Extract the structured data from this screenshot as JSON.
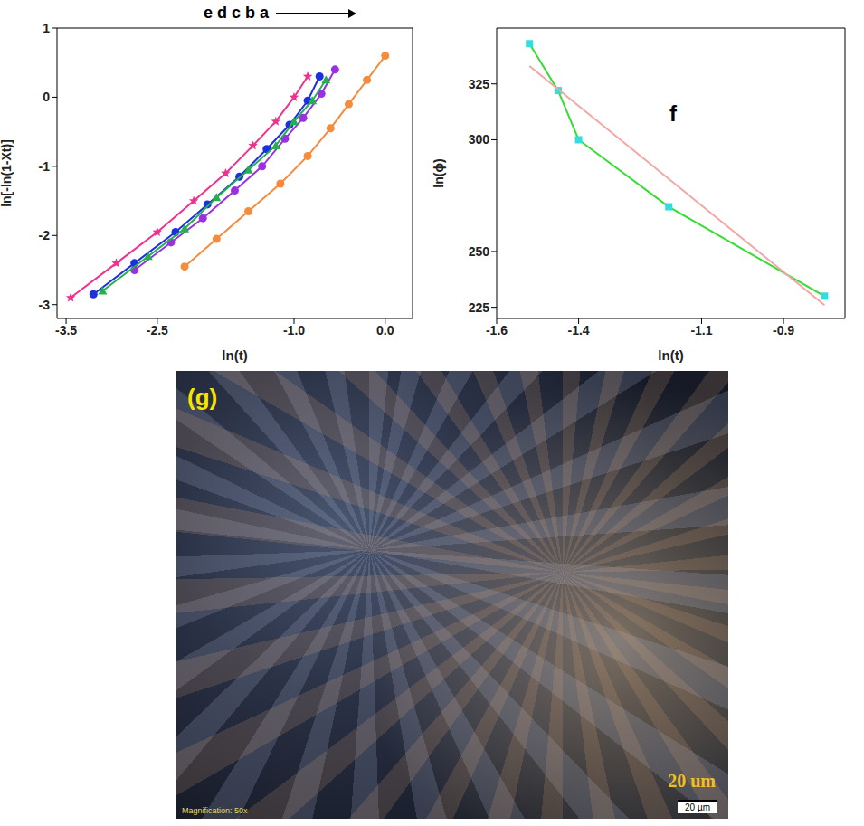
{
  "chart_data": [
    {
      "type": "line",
      "annotation": "e d c b a",
      "x_label": "ln(t)",
      "y_label": "ln[-ln(1-Xt)]",
      "xlim": [
        -3.6,
        0.3
      ],
      "xticks": [
        -3.5,
        -2.5,
        {
          "value": -1,
          "label": "-1.0"
        },
        {
          "value": 0,
          "label": "0.0"
        }
      ],
      "ylim": [
        -3.2,
        1.0
      ],
      "yticks": [
        -3,
        -2,
        -1,
        0,
        1
      ],
      "grid": false,
      "series": [
        {
          "name": "a",
          "color": "#f58b3c",
          "marker": "circle",
          "line_style": "solid",
          "x": [
            -2.2,
            -1.85,
            -1.5,
            -1.15,
            -0.85,
            -0.6,
            -0.4,
            -0.2,
            0.0
          ],
          "values": [
            -2.45,
            -2.05,
            -1.65,
            -1.25,
            -0.85,
            -0.45,
            -0.1,
            0.25,
            0.6
          ]
        },
        {
          "name": "b",
          "color": "#9b30e0",
          "marker": "circle",
          "line_style": "solid",
          "x": [
            -2.75,
            -2.35,
            -2.0,
            -1.65,
            -1.35,
            -1.1,
            -0.9,
            -0.7,
            -0.55
          ],
          "values": [
            -2.5,
            -2.1,
            -1.75,
            -1.35,
            -1.0,
            -0.6,
            -0.3,
            0.05,
            0.4
          ]
        },
        {
          "name": "c",
          "color": "#1f2fe0",
          "marker": "circle",
          "line_style": "solid",
          "x": [
            -3.2,
            -2.75,
            -2.3,
            -1.95,
            -1.6,
            -1.3,
            -1.05,
            -0.85,
            -0.72
          ],
          "values": [
            -2.85,
            -2.4,
            -1.95,
            -1.55,
            -1.15,
            -0.75,
            -0.4,
            -0.05,
            0.3
          ]
        },
        {
          "name": "d",
          "color": "#22b14c",
          "marker": "triangle",
          "line_style": "solid",
          "x": [
            -3.1,
            -2.6,
            -2.2,
            -1.85,
            -1.5,
            -1.2,
            -1.0,
            -0.8,
            -0.65
          ],
          "values": [
            -2.8,
            -2.3,
            -1.9,
            -1.45,
            -1.05,
            -0.7,
            -0.35,
            -0.05,
            0.25
          ]
        },
        {
          "name": "e",
          "color": "#f0308c",
          "marker": "star",
          "line_style": "solid",
          "x": [
            -3.45,
            -2.95,
            -2.5,
            -2.1,
            -1.75,
            -1.45,
            -1.2,
            -1.0,
            -0.85
          ],
          "values": [
            -2.9,
            -2.4,
            -1.95,
            -1.5,
            -1.1,
            -0.7,
            -0.35,
            0.0,
            0.3
          ]
        }
      ]
    },
    {
      "type": "line",
      "annotation": "f",
      "x_label": "ln(t)",
      "y_label": "ln(ϕ)",
      "xlim": [
        -1.6,
        -0.75
      ],
      "xticks": [
        -1.6,
        -1.4,
        -1.1,
        -0.9
      ],
      "ylim": [
        220,
        350
      ],
      "yticks": [
        225,
        250,
        300,
        325
      ],
      "grid": false,
      "series": [
        {
          "color": "#33dd33",
          "colors": [
            "#33dddd",
            "#33dddd",
            "#33dddd",
            "#33dddd",
            "#33dddd"
          ],
          "marker": "square",
          "line_style": "solid",
          "x": [
            -1.52,
            -1.45,
            -1.4,
            -1.18,
            -0.8
          ],
          "values": [
            343,
            322,
            300,
            270,
            230
          ]
        },
        {
          "color": "#f4a6a6",
          "marker": "none",
          "line_style": "solid",
          "x": [
            -1.52,
            -0.8
          ],
          "values": [
            333,
            226
          ]
        }
      ]
    }
  ],
  "micrograph": {
    "panel_label": "(g)",
    "scale_text": "20 um",
    "scale_bar_label": "20 µm",
    "magnification": "Magnification: 50x"
  }
}
